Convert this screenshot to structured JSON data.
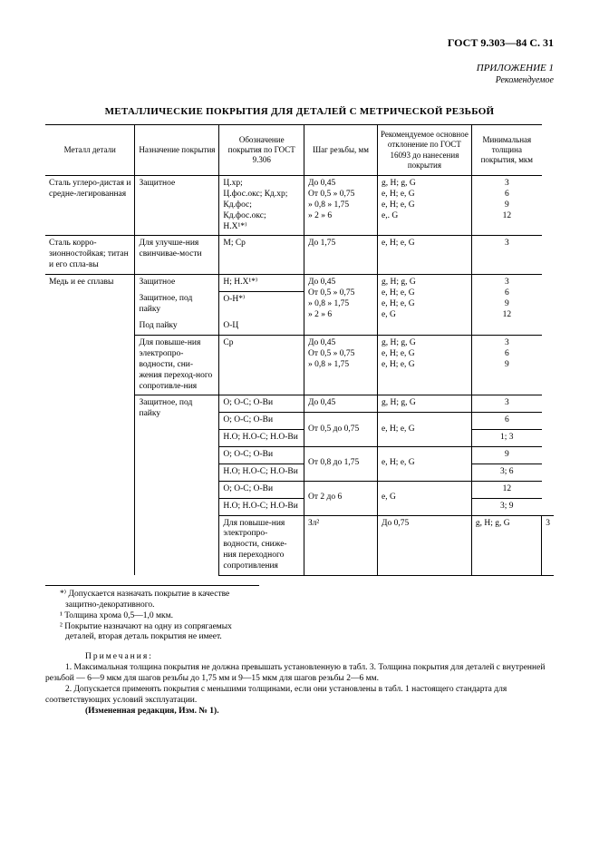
{
  "header": {
    "doc_id": "ГОСТ 9.303—84 С. 31",
    "appendix": "ПРИЛОЖЕНИЕ 1",
    "appendix_sub": "Рекомендуемое"
  },
  "table": {
    "title": "МЕТАЛЛИЧЕСКИЕ ПОКРЫТИЯ ДЛЯ ДЕТАЛЕЙ С МЕТРИЧЕСКОЙ РЕЗЬБОЙ",
    "headers": {
      "c1": "Металл детали",
      "c2": "Назначение покрытия",
      "c3": "Обозначение покрытия по ГОСТ 9.306",
      "c4": "Шаг резьбы, мм",
      "c5": "Рекомендуемое основное отклонение по ГОСТ 16093 до нанесения покрытия",
      "c6": "Минимальная толщина покрытия, мкм"
    },
    "r1": {
      "metal": "Сталь углеро-дистая и средне-легированная",
      "purpose": "Защитное",
      "desig1": "Ц.хр;",
      "desig2": "Ц.фос.окс; Кд.хр;",
      "desig3": "Кд.фос;",
      "desig4": "Кд.фос.окс;",
      "desig5": "Н.Х¹*⁾",
      "pitch1": "До 0,45",
      "pitch2": "От 0,5 » 0,75",
      "pitch3": "» 0,8 » 1,75",
      "pitch4": "» 2 » 6",
      "dev1": "g, H; g, G",
      "dev2": "e, H; e, G",
      "dev3": "e, H; e, G",
      "dev4": "e,. G",
      "th1": "3",
      "th2": "6",
      "th3": "9",
      "th4": "12"
    },
    "r2": {
      "metal": "Сталь корро-зионностойкая; титан и его спла-вы",
      "purpose": "Для улучше-ния свинчивае-мости",
      "desig": "М; Ср",
      "pitch": "До 1,75",
      "dev": "e, H; e, G",
      "th": "3"
    },
    "r3": {
      "metal": "Медь и ее сплавы",
      "purpose": "Защитное",
      "desig": "Н; Н.Х¹*⁾",
      "pitch1": "До 0,45",
      "pitch2": "От 0,5 » 0,75",
      "pitch3": "» 0,8 » 1,75",
      "pitch4": "» 2 » 6",
      "dev1": "g, H; g, G",
      "dev2": "e, H; e, G",
      "dev3": "e, H; e, G",
      "dev4": "e, G",
      "th1": "3",
      "th2": "6",
      "th3": "9",
      "th4": "12"
    },
    "r4": {
      "purpose": "Защитное, под пайку",
      "desig": "О-Н*⁾"
    },
    "r5": {
      "purpose": "Под пайку",
      "desig": "О-Ц"
    },
    "r6": {
      "purpose": "Для повыше-ния электропро-водности, сни-жения переход-ного сопротивле-ния",
      "desig": "Ср",
      "pitch1": "До 0,45",
      "pitch2": "От 0,5 » 0,75",
      "pitch3": "» 0,8 » 1,75",
      "dev1": "g, H; g, G",
      "dev2": "e, H; e, G",
      "dev3": "e, H; e, G",
      "th1": "3",
      "th2": "6",
      "th3": "9"
    },
    "r7": {
      "purpose": "Защитное, под пайку",
      "desigA": "О; О-С; О-Ви",
      "pitchA": "До 0,45",
      "devA": "g, H; g, G",
      "thA": "3",
      "desigB1": "О; О-С; О-Ви",
      "thB1": "6",
      "desigB2": "Н.О; Н.О-С; Н.О-Ви",
      "pitchB": "От 0,5 до 0,75",
      "devB": "e, H; e, G",
      "thB2": "1; 3",
      "desigC1": "О; О-С; О-Ви",
      "thC1": "9",
      "desigC2": "Н.О; Н.О-С; Н.О-Ви",
      "pitchC": "От 0,8 до 1,75",
      "devC": "e, H; e, G",
      "thC2": "3; 6",
      "desigD1": "О; О-С; О-Ви",
      "thD1": "12",
      "desigD2": "Н.О; Н.О-С; Н.О-Ви",
      "pitchD": "От 2 до 6",
      "devD": "e, G",
      "thD2": "3; 9"
    },
    "r8": {
      "purpose": "Для повыше-ния электропро-водности, сниже-ния переходного сопротивления",
      "desig": "Зл²",
      "pitch": "До 0,75",
      "dev": "g, H; g, G",
      "th": "3"
    }
  },
  "footnotes": {
    "f1": "*⁾ Допускается назначать покрытие в качестве защитно-декоративного.",
    "f2": "¹ Толщина хрома 0,5—1,0 мкм.",
    "f3": "² Покрытие назначают на одну из сопрягаемых деталей, вторая деталь покрытия не имеет."
  },
  "notes": {
    "title": "Примечания:",
    "n1": "1. Максимальная толщина покрытия не должна превышать установленную в табл. 3. Толщина покрытия для деталей с внутренней резьбой — 6—9 мкм для шагов резьбы до 1,75 мм и 9—15 мкм для шагов резьбы 2—6 мм.",
    "n2": "2. Допускается применять покрытия с меньшими толщинами, если они установлены в табл. 1 настоящего стандарта для соответствующих условий эксплуатации.",
    "rev": "(Измененная редакция, Изм. № 1)."
  }
}
